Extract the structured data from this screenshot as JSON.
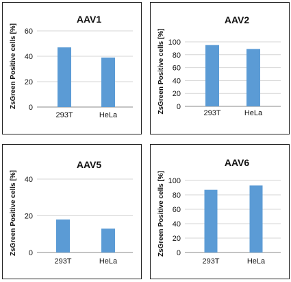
{
  "chart_data": [
    {
      "type": "bar",
      "title": "AAV1",
      "ylabel": "ZsGreen Positive cells [%]",
      "categories": [
        "293T",
        "HeLa"
      ],
      "values": [
        47,
        39
      ],
      "ylim": [
        0,
        60
      ],
      "yticks": [
        0,
        20,
        40,
        60
      ],
      "grid": true
    },
    {
      "type": "bar",
      "title": "AAV2",
      "ylabel": "ZsGreen Positive cells [%]",
      "categories": [
        "293T",
        "HeLa"
      ],
      "values": [
        95,
        89
      ],
      "ylim": [
        0,
        100
      ],
      "yticks": [
        0,
        20,
        40,
        60,
        80,
        100
      ],
      "grid": true
    },
    {
      "type": "bar",
      "title": "AAV5",
      "ylabel": "ZsGreen Positive cells [%]",
      "categories": [
        "293T",
        "HeLa"
      ],
      "values": [
        18,
        13
      ],
      "ylim": [
        0,
        40
      ],
      "yticks": [
        0,
        20,
        40
      ],
      "grid": true
    },
    {
      "type": "bar",
      "title": "AAV6",
      "ylabel": "ZsGreen Positive cells [%]",
      "categories": [
        "293T",
        "HeLa"
      ],
      "values": [
        87,
        93
      ],
      "ylim": [
        0,
        100
      ],
      "yticks": [
        0,
        20,
        40,
        60,
        80,
        100
      ],
      "grid": true
    }
  ],
  "colors": {
    "bar": "#5b9bd5"
  }
}
